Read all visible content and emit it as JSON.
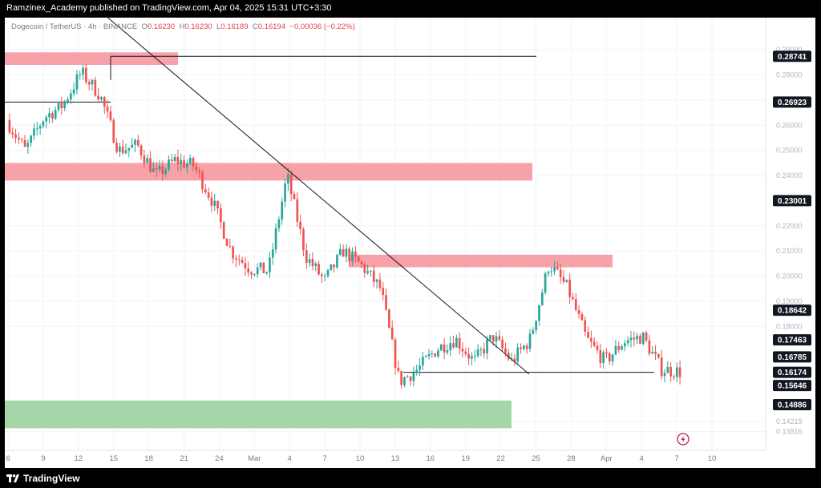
{
  "header": {
    "publish_text": "Ramzinex_Academy published on TradingView.com, Apr 04, 2025 15:31 UTC+3:30"
  },
  "legend": {
    "symbol": "Dogecoin / TetherUS · 4h · BINANCE",
    "o_label": "O",
    "o_value": "0.16230",
    "h_label": "H",
    "h_value": "0.16230",
    "l_label": "L",
    "l_value": "0.16189",
    "c_label": "C",
    "c_value": "0.16194",
    "change": "−0.00036 (−0.22%)"
  },
  "footer": {
    "brand": "TradingView"
  },
  "colors": {
    "up": "#26a69a",
    "down": "#ef5350",
    "supply_zone": "#f7a1a8",
    "demand_zone": "#a5d6a7",
    "grid": "#f0f3fa",
    "line": "#131722"
  },
  "chart_data": {
    "type": "candlestick",
    "title": "",
    "ylim": [
      0.1307,
      0.3028
    ],
    "y_ticks": [
      "0.29000",
      "0.28000",
      "0.27000",
      "0.26000",
      "0.25000",
      "0.24000",
      "0.22000",
      "0.21000",
      "0.20000",
      "0.19000",
      "0.18000",
      "0.14219",
      "0.13816"
    ],
    "price_labels": [
      "0.28741",
      "0.26923",
      "0.23001",
      "0.18642",
      "0.17463",
      "0.16785",
      "0.16174",
      "0.15646",
      "0.14886"
    ],
    "x_ticks": [
      "6",
      "9",
      "12",
      "15",
      "18",
      "21",
      "24",
      "Mar",
      "4",
      "7",
      "10",
      "13",
      "16",
      "19",
      "22",
      "25",
      "28",
      "Apr",
      "4",
      "7",
      "10"
    ],
    "path": [
      [
        "6",
        0.262
      ],
      [
        "9",
        0.25
      ],
      [
        "12",
        0.263
      ],
      [
        "13",
        0.268
      ],
      [
        "14",
        0.281
      ],
      [
        "15",
        0.272
      ],
      [
        "18",
        0.25
      ],
      [
        "20",
        0.252
      ],
      [
        "21",
        0.24
      ],
      [
        "22",
        0.246
      ],
      [
        "23",
        0.244
      ],
      [
        "24",
        0.23
      ],
      [
        "25",
        0.21
      ],
      [
        "26",
        0.203
      ],
      [
        "Mar 1",
        0.202
      ],
      [
        "Mar 2",
        0.24
      ],
      [
        "Mar 3",
        0.208
      ],
      [
        "4",
        0.198
      ],
      [
        "6",
        0.21
      ],
      [
        "7",
        0.204
      ],
      [
        "8",
        0.195
      ],
      [
        "10",
        0.158
      ],
      [
        "11",
        0.163
      ],
      [
        "13",
        0.171
      ],
      [
        "16",
        0.175
      ],
      [
        "18",
        0.166
      ],
      [
        "20",
        0.176
      ],
      [
        "22",
        0.166
      ],
      [
        "24",
        0.175
      ],
      [
        "26",
        0.205
      ],
      [
        "27",
        0.195
      ],
      [
        "29",
        0.175
      ],
      [
        "31",
        0.166
      ],
      [
        "Apr 1",
        0.174
      ],
      [
        "Apr 2",
        0.176
      ],
      [
        "Apr 3",
        0.163
      ],
      [
        "Apr 4",
        0.1619
      ]
    ],
    "zones": [
      {
        "kind": "supply",
        "from": 0.284,
        "to": 0.289
      },
      {
        "kind": "supply",
        "from": 0.238,
        "to": 0.245
      },
      {
        "kind": "supply",
        "from": 0.2035,
        "to": 0.2085
      },
      {
        "kind": "demand",
        "from": 0.1395,
        "to": 0.1505
      }
    ],
    "levels": [
      0.28741,
      0.26923,
      0.16174
    ],
    "trendline": [
      0.304,
      0.161
    ]
  }
}
